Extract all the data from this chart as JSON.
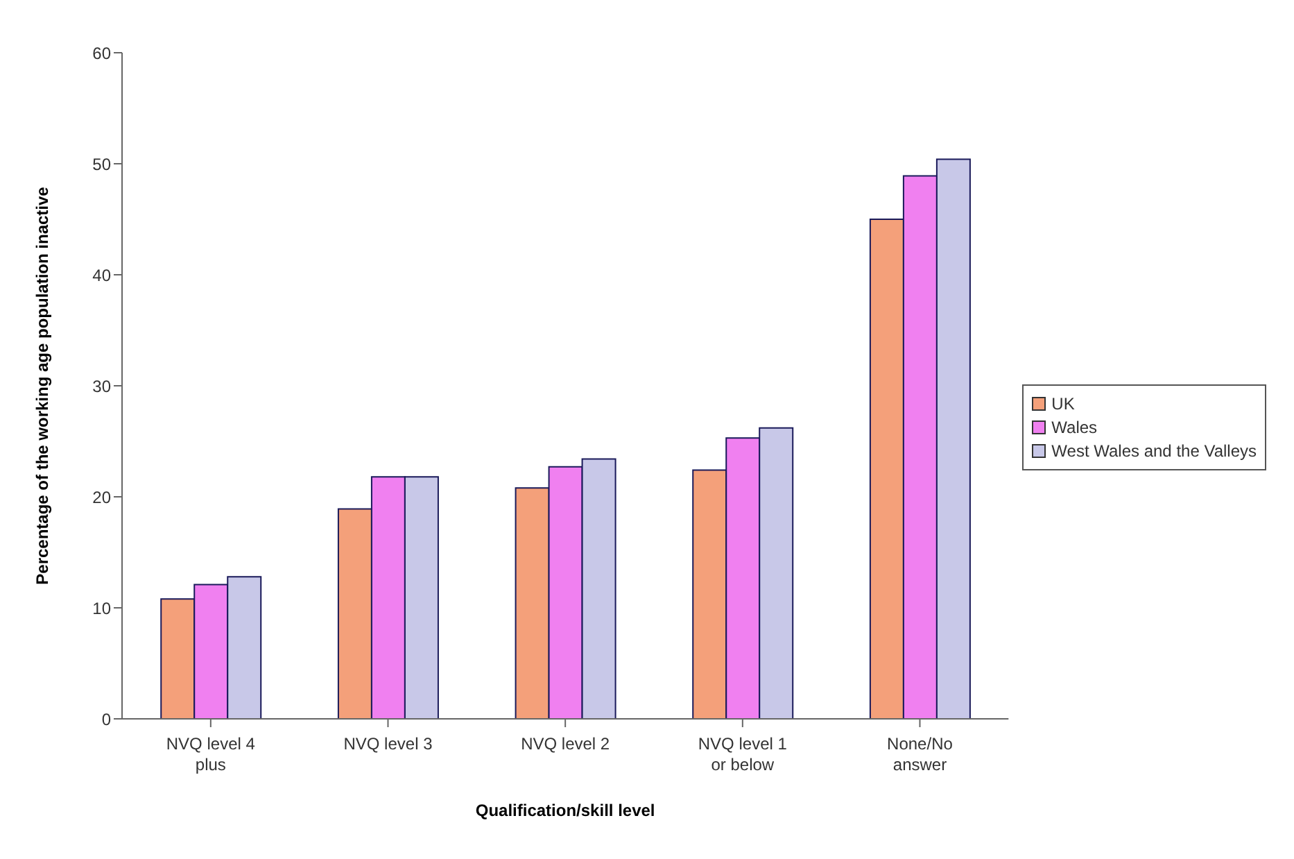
{
  "chart_data": {
    "type": "bar",
    "xlabel": "Qualification/skill level",
    "ylabel": "Percentage of the working age population inactive",
    "categories": [
      "NVQ level 4 plus",
      "NVQ level 3",
      "NVQ level 2",
      "NVQ level 1 or below",
      "None/No answer"
    ],
    "series": [
      {
        "name": "UK",
        "color": "#f4a07a",
        "values": [
          10.8,
          18.9,
          20.8,
          22.4,
          45.0
        ]
      },
      {
        "name": "Wales",
        "color": "#f080f0",
        "values": [
          12.1,
          21.8,
          22.7,
          25.3,
          48.9
        ]
      },
      {
        "name": "West Wales and the Valleys",
        "color": "#c8c8e8",
        "values": [
          12.8,
          21.8,
          23.4,
          26.2,
          50.4
        ]
      }
    ],
    "ylim": [
      0,
      60
    ],
    "yticks": [
      0,
      10,
      20,
      30,
      40,
      50,
      60
    ],
    "grid": false,
    "legend": "right"
  }
}
